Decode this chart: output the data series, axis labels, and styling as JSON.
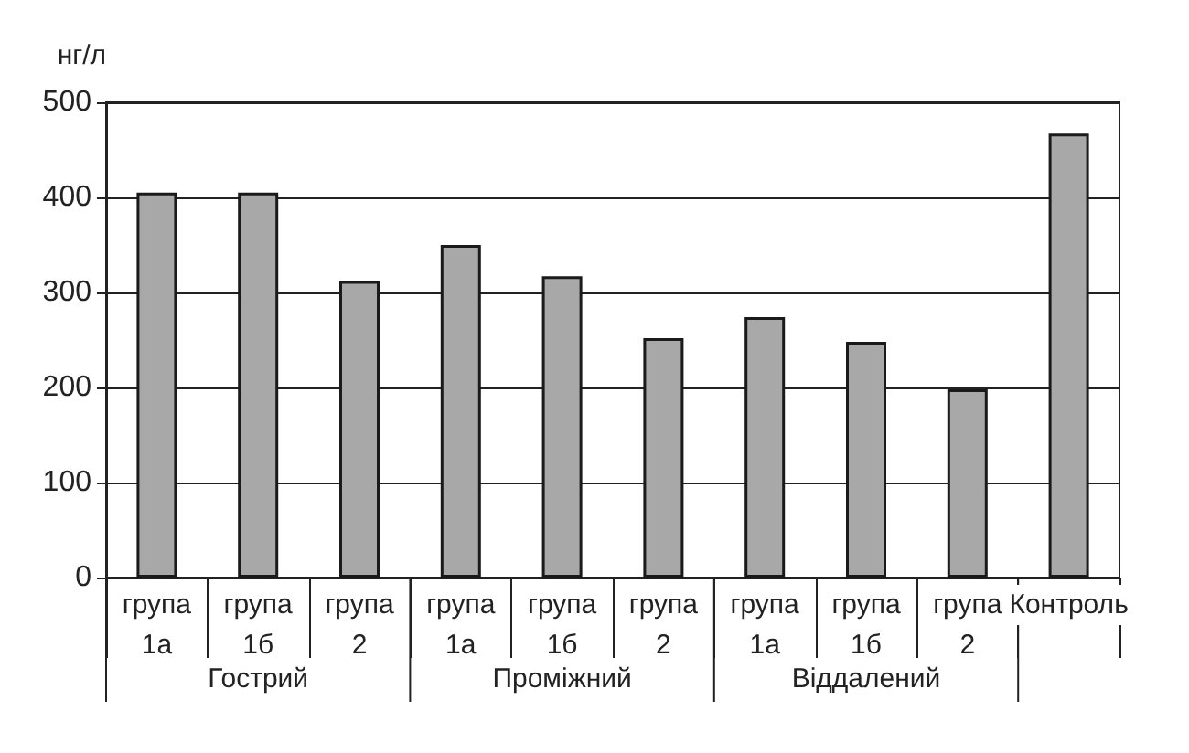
{
  "chart_data": {
    "type": "bar",
    "ylabel": "нг/л",
    "categories": [
      "група 1а",
      "група 1б",
      "група 2",
      "група 1а",
      "група 1б",
      "група 2",
      "група 1а",
      "група 1б",
      "група 2",
      "Контроль"
    ],
    "values": [
      405,
      405,
      312,
      350,
      317,
      252,
      274,
      248,
      198,
      467
    ],
    "color": "#a8a8a8",
    "annotations": [
      "Гострий",
      "Проміжний",
      "Віддалений"
    ],
    "ylim": [
      0,
      500
    ],
    "yticks": [
      0,
      100,
      200,
      300,
      400,
      500
    ],
    "grid": "y"
  }
}
